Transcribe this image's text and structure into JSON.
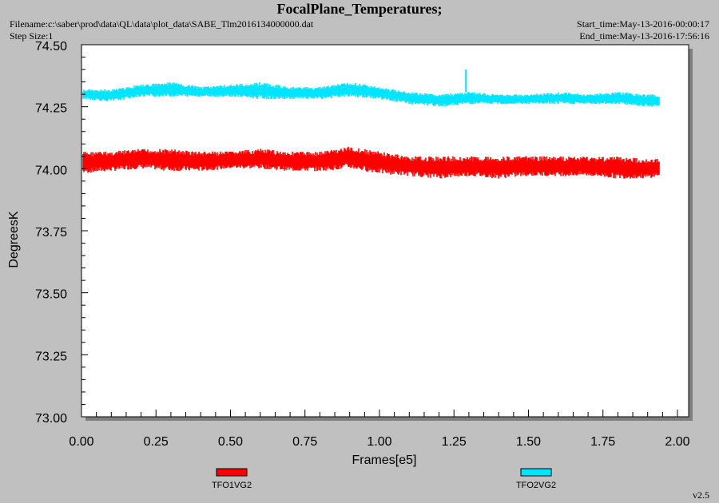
{
  "header": {
    "title": "FocalPlane_Temperatures;",
    "filename": "Filename:c:\\saber\\prod\\data\\QL\\data\\plot_data\\SABE_Tlm2016134000000.dat",
    "step_size": "Step Size:1",
    "start_time": "Start_time:May-13-2016-00:00:17",
    "end_time": "End_time:May-13-2016-17:56:16"
  },
  "version": "v2.5",
  "colors": {
    "TFO1VG2": "#ff0000",
    "TFO2VG2": "#00e5ff",
    "plot_bg": "#ffffff",
    "frame_bg": "#c0c0c0"
  },
  "chart_data": {
    "type": "line",
    "title": "FocalPlane_Temperatures;",
    "xlabel": "Frames[e5]",
    "ylabel": "DegreesK",
    "xlim": [
      0.0,
      2.0
    ],
    "ylim": [
      73.0,
      74.5
    ],
    "x_ticks": [
      "0.00",
      "0.25",
      "0.50",
      "0.75",
      "1.00",
      "1.25",
      "1.50",
      "1.75",
      "2.00"
    ],
    "y_ticks": [
      "73.00",
      "73.25",
      "73.50",
      "73.75",
      "74.00",
      "74.25",
      "74.50"
    ],
    "grid": false,
    "legend_position": "bottom",
    "series": [
      {
        "name": "TFO1VG2",
        "color": "#ff0000",
        "x": [
          0.0,
          0.1,
          0.2,
          0.3,
          0.4,
          0.5,
          0.6,
          0.7,
          0.8,
          0.9,
          1.0,
          1.1,
          1.2,
          1.3,
          1.4,
          1.5,
          1.6,
          1.7,
          1.8,
          1.9,
          1.94
        ],
        "y_min": [
          73.98,
          73.99,
          74.0,
          73.99,
          73.99,
          74.0,
          74.0,
          73.99,
          73.99,
          74.0,
          73.98,
          73.97,
          73.96,
          73.97,
          73.96,
          73.97,
          73.97,
          73.97,
          73.96,
          73.96,
          73.97
        ],
        "y_max": [
          74.07,
          74.07,
          74.08,
          74.08,
          74.07,
          74.07,
          74.08,
          74.07,
          74.07,
          74.09,
          74.07,
          74.05,
          74.05,
          74.05,
          74.05,
          74.05,
          74.05,
          74.05,
          74.05,
          74.04,
          74.04
        ]
      },
      {
        "name": "TFO2VG2",
        "color": "#00e5ff",
        "x": [
          0.0,
          0.1,
          0.2,
          0.3,
          0.4,
          0.5,
          0.6,
          0.7,
          0.8,
          0.9,
          1.0,
          1.1,
          1.2,
          1.3,
          1.4,
          1.5,
          1.6,
          1.7,
          1.8,
          1.9,
          1.94
        ],
        "y_min": [
          74.28,
          74.27,
          74.29,
          74.29,
          74.29,
          74.29,
          74.28,
          74.28,
          74.28,
          74.29,
          74.28,
          74.26,
          74.25,
          74.26,
          74.26,
          74.26,
          74.26,
          74.26,
          74.26,
          74.25,
          74.25
        ],
        "y_max": [
          74.32,
          74.32,
          74.34,
          74.35,
          74.33,
          74.34,
          74.35,
          74.33,
          74.33,
          74.35,
          74.33,
          74.31,
          74.3,
          74.31,
          74.3,
          74.3,
          74.31,
          74.3,
          74.31,
          74.3,
          74.3
        ],
        "spike": {
          "x": 1.29,
          "y": 74.4
        }
      }
    ]
  }
}
